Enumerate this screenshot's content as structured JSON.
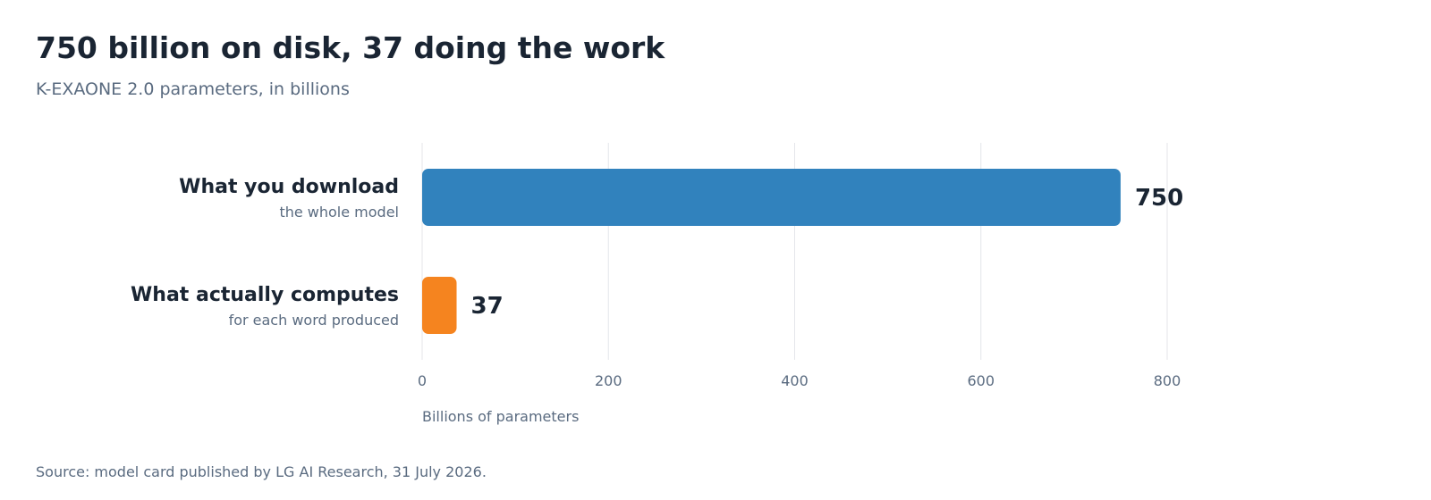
{
  "title": "750 billion on disk, 37 doing the work",
  "subtitle": "K-EXAONE 2.0 parameters, in billions",
  "source": "Source: model card published by LG AI Research, 31 July 2026.",
  "chart_data": {
    "type": "bar",
    "orientation": "horizontal",
    "categories": [
      "What you download",
      "What actually computes"
    ],
    "category_sublabels": [
      "the whole model",
      "for each word produced"
    ],
    "values": [
      750,
      37
    ],
    "value_labels": [
      "750",
      "37"
    ],
    "colors": [
      "#3182bd",
      "#f5841f"
    ],
    "xlabel": "Billions of parameters",
    "xlim": [
      0,
      800
    ],
    "xticks": [
      0,
      200,
      400,
      600,
      800
    ],
    "grid": true,
    "legend": "none"
  },
  "colors": {
    "text_dark": "#1a2533",
    "text_muted": "#5a6b80",
    "grid": "#e4e6ea"
  }
}
